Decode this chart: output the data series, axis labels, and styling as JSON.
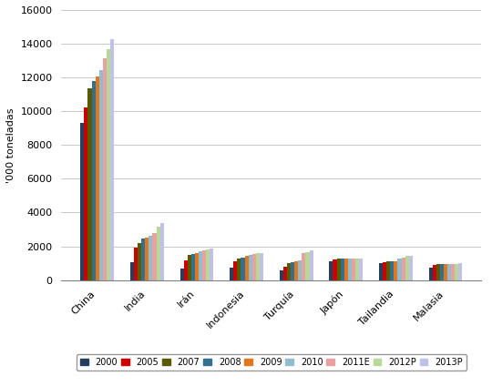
{
  "categories": [
    "China",
    "India",
    "Irán",
    "Indonesia",
    "Turquía",
    "Japón",
    "Tailandia",
    "Malasia"
  ],
  "series": {
    "2000": [
      9300,
      1050,
      700,
      720,
      600,
      1100,
      1000,
      750
    ],
    "2005": [
      10200,
      1900,
      1150,
      1100,
      800,
      1200,
      1050,
      900
    ],
    "2007": [
      11350,
      2200,
      1500,
      1300,
      1000,
      1250,
      1100,
      950
    ],
    "2008": [
      11800,
      2450,
      1550,
      1350,
      1050,
      1250,
      1100,
      950
    ],
    "2009": [
      12050,
      2500,
      1600,
      1450,
      1100,
      1300,
      1100,
      950
    ],
    "2010": [
      12450,
      2600,
      1700,
      1500,
      1150,
      1300,
      1250,
      950
    ],
    "2011E": [
      13150,
      2800,
      1750,
      1550,
      1600,
      1250,
      1350,
      950
    ],
    "2012P": [
      13700,
      3150,
      1800,
      1600,
      1650,
      1300,
      1450,
      950
    ],
    "2013P": [
      14250,
      3400,
      1850,
      1600,
      1750,
      1300,
      1450,
      1000
    ]
  },
  "series_order": [
    "2000",
    "2005",
    "2007",
    "2008",
    "2009",
    "2010",
    "2011E",
    "2012P",
    "2013P"
  ],
  "colors": {
    "2000": "#243F60",
    "2005": "#CC0000",
    "2007": "#5A5A00",
    "2008": "#317090",
    "2009": "#E07820",
    "2010": "#92BDD0",
    "2011E": "#E8A0A0",
    "2012P": "#B8D898",
    "2013P": "#C0C0E8"
  },
  "ylabel": "'000 toneladas",
  "ylim": [
    0,
    16000
  ],
  "yticks": [
    0,
    2000,
    4000,
    6000,
    8000,
    10000,
    12000,
    14000,
    16000
  ],
  "bg_color": "#FFFFFF",
  "grid_color": "#BFBFBF",
  "figsize": [
    5.4,
    4.24
  ],
  "dpi": 100
}
